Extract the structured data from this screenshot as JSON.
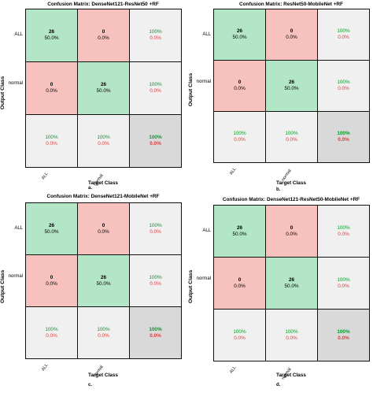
{
  "chart_data": [
    {
      "type": "table",
      "title": "Confusion Matrix: DenseNet121-ResNet50 +RF",
      "xlabel": "Target Class",
      "ylabel": "Output Class",
      "classes": [
        "ALL",
        "normal"
      ],
      "cells": [
        [
          {
            "count": "26",
            "pct": "50.0%"
          },
          {
            "count": "0",
            "pct": "0.0%"
          },
          {
            "good": "100%",
            "bad": "0.0%"
          }
        ],
        [
          {
            "count": "0",
            "pct": "0.0%"
          },
          {
            "count": "26",
            "pct": "50.0%"
          },
          {
            "good": "100%",
            "bad": "0.0%"
          }
        ],
        [
          {
            "good": "100%",
            "bad": "0.0%"
          },
          {
            "good": "100%",
            "bad": "0.0%"
          },
          {
            "good": "100%",
            "bad": "0.0%"
          }
        ]
      ],
      "panel_label": "a."
    },
    {
      "type": "table",
      "title": "Confusion Matrix: ResNet50-MobileNet +RF",
      "xlabel": "Target Class",
      "ylabel": "Output Class",
      "classes": [
        "ALL",
        "normal"
      ],
      "cells": [
        [
          {
            "count": "26",
            "pct": "50.0%"
          },
          {
            "count": "0",
            "pct": "0.0%"
          },
          {
            "good": "100%",
            "bad": "0.0%"
          }
        ],
        [
          {
            "count": "0",
            "pct": "0.0%"
          },
          {
            "count": "26",
            "pct": "50.0%"
          },
          {
            "good": "100%",
            "bad": "0.0%"
          }
        ],
        [
          {
            "good": "100%",
            "bad": "0.0%"
          },
          {
            "good": "100%",
            "bad": "0.0%"
          },
          {
            "good": "100%",
            "bad": "0.0%"
          }
        ]
      ],
      "panel_label": "b."
    },
    {
      "type": "table",
      "title": "Confusion Matrix: DenseNet121-MobileNet +RF",
      "xlabel": "Target Class",
      "ylabel": "Output Class",
      "classes": [
        "ALL",
        "normal"
      ],
      "cells": [
        [
          {
            "count": "26",
            "pct": "50.0%"
          },
          {
            "count": "0",
            "pct": "0.0%"
          },
          {
            "good": "100%",
            "bad": "0.0%"
          }
        ],
        [
          {
            "count": "0",
            "pct": "0.0%"
          },
          {
            "count": "26",
            "pct": "50.0%"
          },
          {
            "good": "100%",
            "bad": "0.0%"
          }
        ],
        [
          {
            "good": "100%",
            "bad": "0.0%"
          },
          {
            "good": "100%",
            "bad": "0.0%"
          },
          {
            "good": "100%",
            "bad": "0.0%"
          }
        ]
      ],
      "panel_label": "c."
    },
    {
      "type": "table",
      "title": "Confusion Matrix: DenseNet121-ResNet50-MobileNet +RF",
      "xlabel": "Target Class",
      "ylabel": "Output Class",
      "classes": [
        "ALL",
        "normal"
      ],
      "cells": [
        [
          {
            "count": "26",
            "pct": "50.0%"
          },
          {
            "count": "0",
            "pct": "0.0%"
          },
          {
            "good": "100%",
            "bad": "0.0%"
          }
        ],
        [
          {
            "count": "0",
            "pct": "0.0%"
          },
          {
            "count": "26",
            "pct": "50.0%"
          },
          {
            "good": "100%",
            "bad": "0.0%"
          }
        ],
        [
          {
            "good": "100%",
            "bad": "0.0%"
          },
          {
            "good": "100%",
            "bad": "0.0%"
          },
          {
            "good": "100%",
            "bad": "0.0%"
          }
        ]
      ],
      "panel_label": "d."
    }
  ],
  "colors": {
    "correct_cell": "#b3e6c6",
    "wrong_cell": "#f7c1bd",
    "summary_cell": "#f0f0f0",
    "total_cell": "#d9d9d9",
    "good_text": "#0a9a2a",
    "bad_text": "#e03b3b"
  }
}
